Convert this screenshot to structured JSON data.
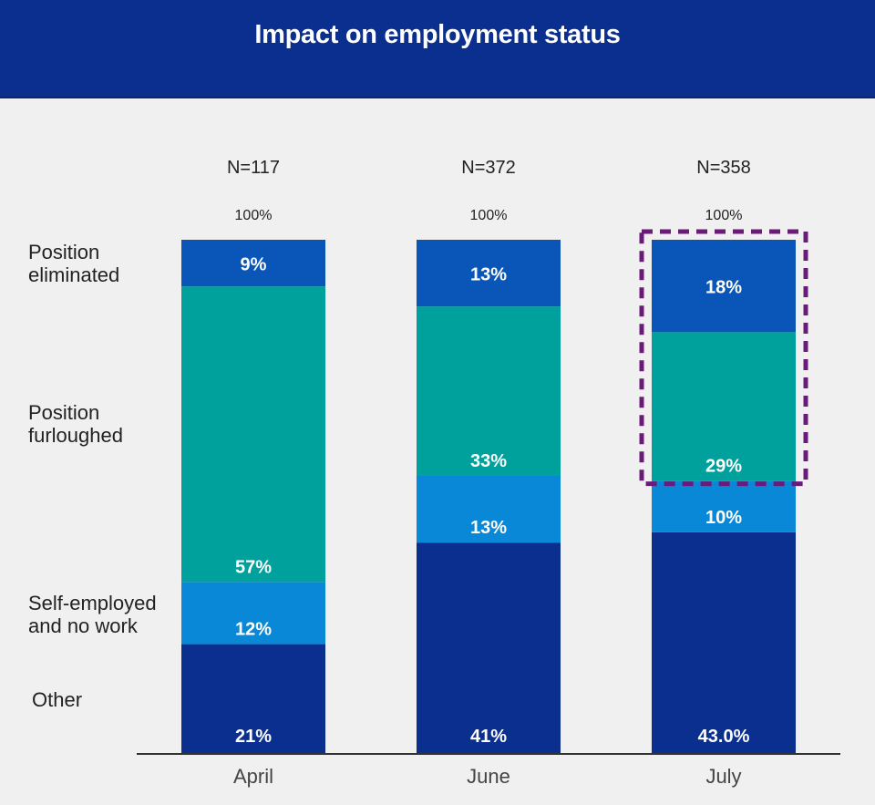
{
  "header": {
    "title": "Impact on employment status"
  },
  "colors": {
    "header_bg": "#0b2f8f",
    "position_eliminated": "#0a56b8",
    "position_furloughed": "#00a19c",
    "self_employed": "#0a88d8",
    "other": "#0b2f8f",
    "highlight": "#6a1b7a"
  },
  "chart_data": {
    "type": "bar",
    "stacked": true,
    "title": "Impact on employment status",
    "xlabel": "",
    "ylabel": "",
    "ylim": [
      0,
      100
    ],
    "grid": false,
    "categories": [
      "April",
      "June",
      "July"
    ],
    "sample_sizes": [
      "N=117",
      "N=372",
      "N=358"
    ],
    "totals": [
      "100%",
      "100%",
      "100%"
    ],
    "series": [
      {
        "name": "Other",
        "row_label": [
          "Other"
        ],
        "values": [
          21,
          41,
          43.0
        ],
        "labels": [
          "21%",
          "41%",
          "43.0%"
        ],
        "color": "#0b2f8f"
      },
      {
        "name": "Self-employed and no work",
        "row_label": [
          "Self-employed",
          "and no work"
        ],
        "values": [
          12,
          13,
          10
        ],
        "labels": [
          "12%",
          "13%",
          "10%"
        ],
        "color": "#0a88d8"
      },
      {
        "name": "Position furloughed",
        "row_label": [
          "Position",
          "furloughed"
        ],
        "values": [
          57,
          33,
          29
        ],
        "labels": [
          "57%",
          "33%",
          "29%"
        ],
        "color": "#00a19c"
      },
      {
        "name": "Position eliminated",
        "row_label": [
          "Position",
          "eliminated"
        ],
        "values": [
          9,
          13,
          18
        ],
        "labels": [
          "9%",
          "13%",
          "18%"
        ],
        "color": "#0a56b8"
      }
    ],
    "annotations": [
      {
        "type": "dashed-box",
        "category": "July",
        "series": [
          "Position eliminated",
          "Position furloughed"
        ],
        "color": "#6a1b7a"
      }
    ],
    "legend": "left-side row labels"
  }
}
